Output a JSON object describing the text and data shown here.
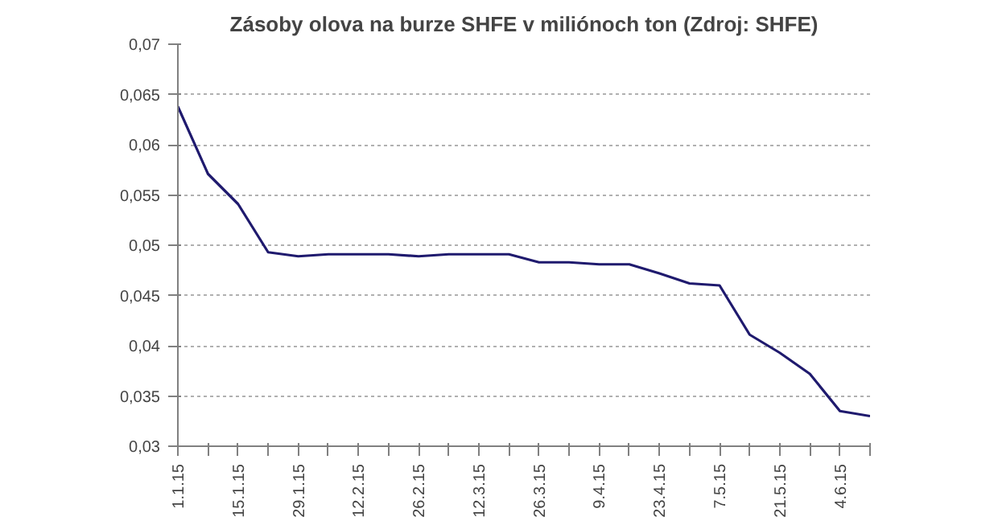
{
  "chart_data": {
    "type": "line",
    "title": "Zásoby olova na burze SHFE v miliónoch ton (Zdroj: SHFE)",
    "categories": [
      "1.1.15",
      null,
      "15.1.15",
      null,
      "29.1.15",
      null,
      "12.2.15",
      null,
      "26.2.15",
      null,
      "12.3.15",
      null,
      "26.3.15",
      null,
      "9.4.15",
      null,
      "23.4.15",
      null,
      "7.5.15",
      null,
      "21.5.15",
      null,
      "4.6.15",
      null
    ],
    "series": [
      {
        "color": "#1f1a6e",
        "values": [
          0.0638,
          0.0571,
          0.0541,
          0.0493,
          0.0489,
          0.0491,
          0.0491,
          0.0491,
          0.0489,
          0.0491,
          0.0491,
          0.0491,
          0.0483,
          0.0483,
          0.0481,
          0.0481,
          0.0472,
          0.0462,
          0.046,
          0.0411,
          0.0393,
          0.0372,
          0.0335,
          0.033
        ]
      }
    ],
    "ylim": [
      0.03,
      0.07
    ],
    "yticks": [
      {
        "value": 0.03,
        "label": "0,03"
      },
      {
        "value": 0.035,
        "label": "0,035"
      },
      {
        "value": 0.04,
        "label": "0,04"
      },
      {
        "value": 0.045,
        "label": "0,045"
      },
      {
        "value": 0.05,
        "label": "0,05"
      },
      {
        "value": 0.055,
        "label": "0,055"
      },
      {
        "value": 0.06,
        "label": "0,06"
      },
      {
        "value": 0.065,
        "label": "0,065"
      },
      {
        "value": 0.07,
        "label": "0,07"
      }
    ],
    "grid": "y",
    "marker": "none",
    "line_style": "solid"
  }
}
